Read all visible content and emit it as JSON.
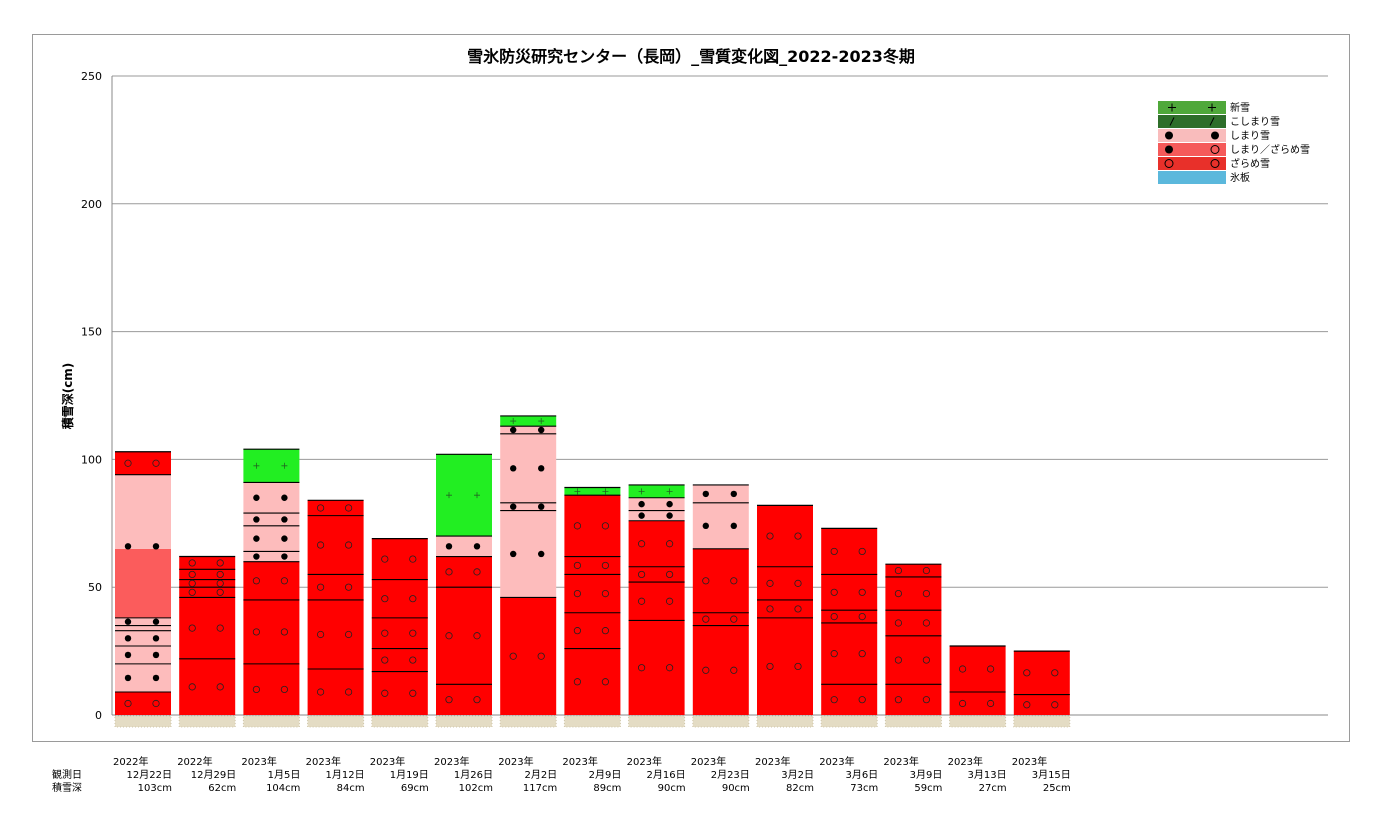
{
  "chart_data": {
    "type": "bar",
    "title": "雪氷防災研究センター（長岡）_雪質変化図_2022-2023冬期",
    "ylabel": "積雪深(cm)",
    "ylim": [
      0,
      250
    ],
    "yticks": [
      "0",
      "50",
      "100",
      "150",
      "200",
      "250"
    ],
    "grid": true,
    "legend_position": "top-right",
    "row_labels": {
      "date": "観測日",
      "depth": "積雪深"
    },
    "legend": [
      {
        "key": "new",
        "label": "新雪",
        "color": "#4fa83a",
        "symbol": "+"
      },
      {
        "key": "komp",
        "label": "こしまり雪",
        "color": "#2e6e2a",
        "symbol": "/"
      },
      {
        "key": "comp",
        "label": "しまり雪",
        "color": "#f9bcbc",
        "symbol": "●"
      },
      {
        "key": "mix",
        "label": "しまり／ざらめ雪",
        "color": "#f55a5a",
        "symbol": "●○"
      },
      {
        "key": "gran",
        "label": "ざらめ雪",
        "color": "#e8302a",
        "symbol": "○"
      },
      {
        "key": "ice",
        "label": "氷板",
        "color": "#5bb8dc",
        "symbol": ""
      }
    ],
    "layer_colors": {
      "new": "#22ee22",
      "komp": "#2e6e2a",
      "comp": "#fdbcbc",
      "mix": "#fb5c5c",
      "gran": "#ff0000",
      "ice": "#5bb8dc"
    },
    "observations": [
      {
        "year": "2022年",
        "date": "12月22日",
        "depth": "103cm",
        "layers": [
          [
            "gran",
            0,
            9
          ],
          [
            "comp",
            9,
            38
          ],
          [
            "mix",
            38,
            65
          ],
          [
            "comp",
            65,
            94
          ],
          [
            "gran",
            94,
            103
          ]
        ],
        "lines": [
          9,
          20,
          27,
          33,
          35,
          38,
          94
        ]
      },
      {
        "year": "2022年",
        "date": "12月29日",
        "depth": "62cm",
        "layers": [
          [
            "gran",
            0,
            62
          ]
        ],
        "lines": [
          22,
          46,
          50,
          53,
          57
        ]
      },
      {
        "year": "2023年",
        "date": "1月5日",
        "depth": "104cm",
        "layers": [
          [
            "gran",
            0,
            60
          ],
          [
            "comp",
            60,
            91
          ],
          [
            "new",
            91,
            104
          ]
        ],
        "lines": [
          20,
          45,
          60,
          64,
          74,
          79,
          91
        ]
      },
      {
        "year": "2023年",
        "date": "1月12日",
        "depth": "84cm",
        "layers": [
          [
            "gran",
            0,
            84
          ]
        ],
        "lines": [
          18,
          45,
          55,
          78
        ]
      },
      {
        "year": "2023年",
        "date": "1月19日",
        "depth": "69cm",
        "layers": [
          [
            "gran",
            0,
            69
          ]
        ],
        "lines": [
          17,
          26,
          38,
          53
        ]
      },
      {
        "year": "2023年",
        "date": "1月26日",
        "depth": "102cm",
        "layers": [
          [
            "gran",
            0,
            62
          ],
          [
            "comp",
            62,
            70
          ],
          [
            "new",
            70,
            102
          ]
        ],
        "lines": [
          12,
          50,
          62,
          70
        ]
      },
      {
        "year": "2023年",
        "date": "2月2日",
        "depth": "117cm",
        "layers": [
          [
            "gran",
            0,
            46
          ],
          [
            "comp",
            46,
            113
          ],
          [
            "new",
            113,
            117
          ]
        ],
        "lines": [
          46,
          80,
          83,
          110,
          113
        ]
      },
      {
        "year": "2023年",
        "date": "2月9日",
        "depth": "89cm",
        "layers": [
          [
            "gran",
            0,
            86
          ],
          [
            "new",
            86,
            89
          ]
        ],
        "lines": [
          26,
          40,
          55,
          62,
          86
        ]
      },
      {
        "year": "2023年",
        "date": "2月16日",
        "depth": "90cm",
        "layers": [
          [
            "gran",
            0,
            76
          ],
          [
            "comp",
            76,
            85
          ],
          [
            "new",
            85,
            90
          ]
        ],
        "lines": [
          37,
          52,
          58,
          76,
          80,
          85
        ]
      },
      {
        "year": "2023年",
        "date": "2月23日",
        "depth": "90cm",
        "layers": [
          [
            "gran",
            0,
            65
          ],
          [
            "comp",
            65,
            90
          ]
        ],
        "lines": [
          35,
          40,
          65,
          83
        ]
      },
      {
        "year": "2023年",
        "date": "3月2日",
        "depth": "82cm",
        "layers": [
          [
            "gran",
            0,
            82
          ]
        ],
        "lines": [
          38,
          45,
          58
        ]
      },
      {
        "year": "2023年",
        "date": "3月6日",
        "depth": "73cm",
        "layers": [
          [
            "gran",
            0,
            73
          ]
        ],
        "lines": [
          12,
          36,
          41,
          55
        ]
      },
      {
        "year": "2023年",
        "date": "3月9日",
        "depth": "59cm",
        "layers": [
          [
            "gran",
            0,
            59
          ]
        ],
        "lines": [
          12,
          31,
          41,
          54
        ]
      },
      {
        "year": "2023年",
        "date": "3月13日",
        "depth": "27cm",
        "layers": [
          [
            "gran",
            0,
            27
          ]
        ],
        "lines": [
          9
        ]
      },
      {
        "year": "2023年",
        "date": "3月15日",
        "depth": "25cm",
        "layers": [
          [
            "gran",
            0,
            25
          ]
        ],
        "lines": [
          8
        ]
      }
    ]
  }
}
